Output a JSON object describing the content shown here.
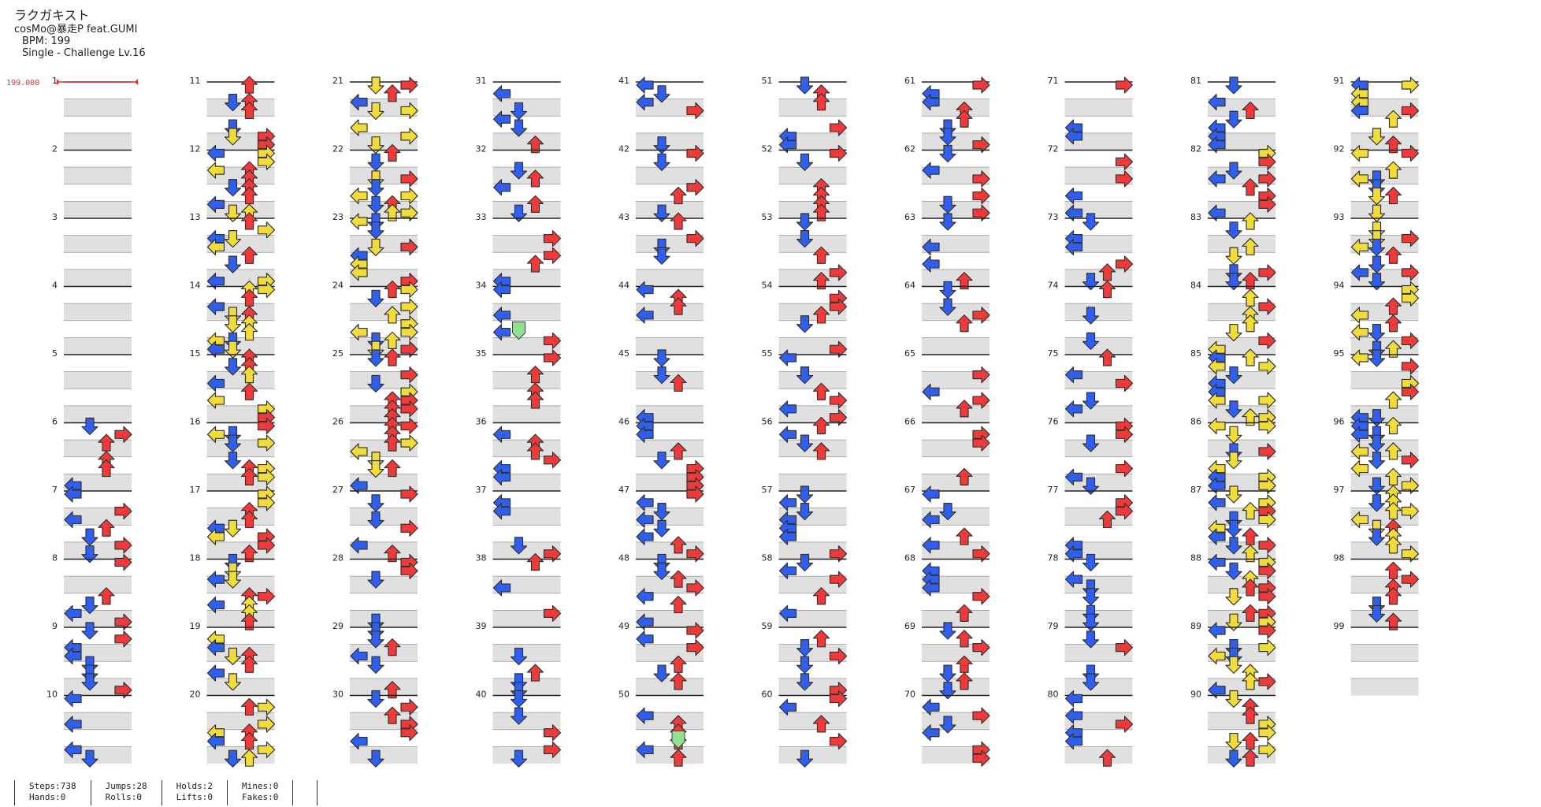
{
  "song": {
    "title": "ラクガキスト",
    "artist": "cosMo@暴走P feat.GUMI",
    "bpm_label": "BPM: 199",
    "difficulty": "Single - Challenge  Lv.16"
  },
  "bpm_marker": "199.000",
  "measure_count": 99,
  "columns": 10,
  "measures_per_column": 10,
  "note_colors": {
    "left": "#2f5ff0",
    "down": "#2f5ff0",
    "up": "#f03a3a",
    "right": "#f03a3a",
    "quarter": "#f03a3a",
    "eighth": "#2f5ff0",
    "sixteenth": "#f2dc3a",
    "other": "#a940f0",
    "mine": "#8fe08f"
  },
  "stats": {
    "steps": "Steps:738",
    "jumps": "Jumps:28",
    "holds": "Holds:2",
    "mines": "Mines:0",
    "hands": "Hands:0",
    "rolls": "Rolls:0",
    "lifts": "Lifts:0",
    "fakes": "Fakes:0"
  }
}
